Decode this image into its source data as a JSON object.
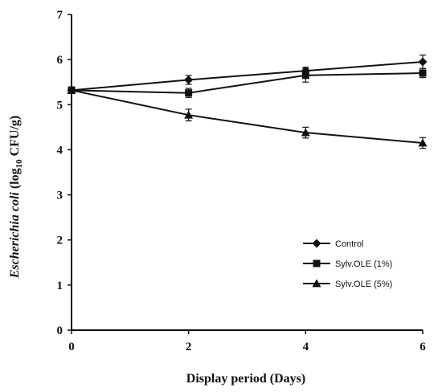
{
  "chart_data": {
    "type": "line",
    "x": [
      0,
      2,
      4,
      6
    ],
    "xlabel": "Display period (Days)",
    "ylabel_prefix": "Escherichia coli",
    "ylabel_suffix": " (log",
    "ylabel_sub": "10",
    "ylabel_end": " CFU/g)",
    "xlim": [
      0,
      6
    ],
    "ylim": [
      0,
      7
    ],
    "xticks": [
      "0",
      "2",
      "4",
      "6"
    ],
    "yticks": [
      "0",
      "1",
      "2",
      "3",
      "4",
      "5",
      "6",
      "7"
    ],
    "grid": false,
    "legend_position": "bottom-right",
    "series": [
      {
        "name": "Control",
        "marker": "diamond",
        "values": [
          5.32,
          5.55,
          5.75,
          5.95
        ],
        "errors": [
          0.07,
          0.1,
          0.08,
          0.15
        ]
      },
      {
        "name": "Sylv.OLE (1%)",
        "marker": "square",
        "values": [
          5.32,
          5.26,
          5.65,
          5.7
        ],
        "errors": [
          0.07,
          0.1,
          0.15,
          0.1
        ]
      },
      {
        "name": "Sylv.OLE (5%)",
        "marker": "triangle",
        "values": [
          5.32,
          4.77,
          4.38,
          4.15
        ],
        "errors": [
          0.07,
          0.13,
          0.12,
          0.12
        ]
      }
    ],
    "colors": {
      "line": "#111111"
    }
  }
}
